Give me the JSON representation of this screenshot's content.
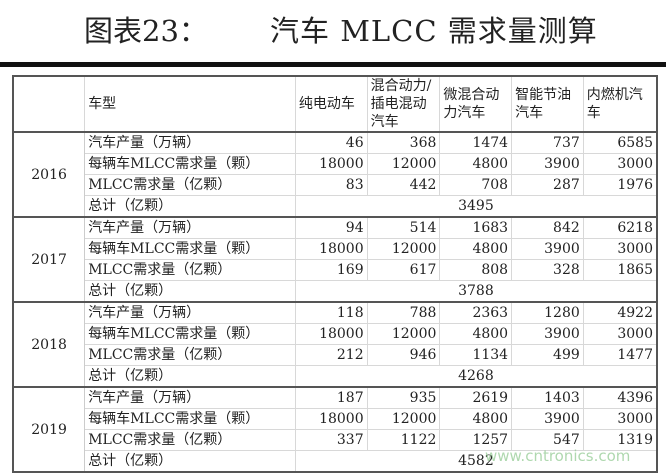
{
  "title": {
    "label": "图表23：",
    "text": "汽车 MLCC 需求量测算"
  },
  "headers": [
    "",
    "车型",
    "纯电动车",
    "混合动力/插电混动汽车",
    "微混合动力汽车",
    "智能节油汽车",
    "内燃机汽车"
  ],
  "row_labels": [
    "汽车产量（万辆）",
    "每辆车MLCC需求量（颗）",
    "MLCC需求量（亿颗）",
    "总计（亿颗）"
  ],
  "groups": [
    {
      "year": "2016",
      "production": [
        "46",
        "368",
        "1474",
        "737",
        "6585"
      ],
      "per_car": [
        "18000",
        "12000",
        "4800",
        "3900",
        "3000"
      ],
      "demand": [
        "83",
        "442",
        "708",
        "287",
        "1976"
      ],
      "total": "3495"
    },
    {
      "year": "2017",
      "production": [
        "94",
        "514",
        "1683",
        "842",
        "6218"
      ],
      "per_car": [
        "18000",
        "12000",
        "4800",
        "3900",
        "3000"
      ],
      "demand": [
        "169",
        "617",
        "808",
        "328",
        "1865"
      ],
      "total": "3788"
    },
    {
      "year": "2018",
      "production": [
        "118",
        "788",
        "2363",
        "1280",
        "4922"
      ],
      "per_car": [
        "18000",
        "12000",
        "4800",
        "3900",
        "3000"
      ],
      "demand": [
        "212",
        "946",
        "1134",
        "499",
        "1477"
      ],
      "total": "4268"
    },
    {
      "year": "2019",
      "production": [
        "187",
        "935",
        "2619",
        "1403",
        "4396"
      ],
      "per_car": [
        "18000",
        "12000",
        "4800",
        "3900",
        "3000"
      ],
      "demand": [
        "337",
        "1122",
        "1257",
        "547",
        "1319"
      ],
      "total": "4582"
    }
  ],
  "watermark": "www.cntronics.com"
}
